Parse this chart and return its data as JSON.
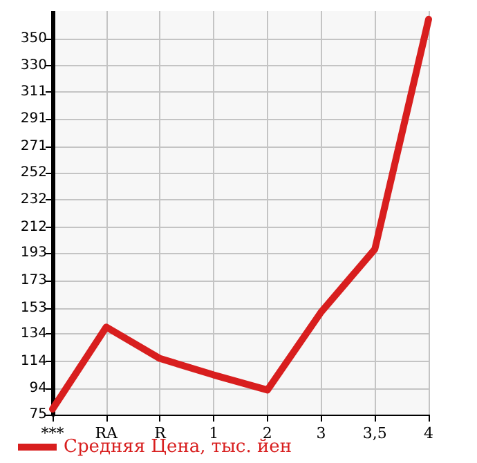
{
  "chart_data": {
    "type": "line",
    "categories": [
      "***",
      "RA",
      "R",
      "1",
      "2",
      "3",
      "3,5",
      "4"
    ],
    "series": [
      {
        "name": "Средняя Цена, тыс. йен",
        "color": "#d81e1e",
        "values": [
          79,
          139,
          116,
          104,
          93,
          150,
          196,
          364
        ]
      }
    ],
    "ylim": [
      75,
      370
    ],
    "yticks": [
      75,
      94,
      114,
      134,
      153,
      173,
      193,
      212,
      232,
      252,
      271,
      291,
      311,
      330,
      350
    ],
    "grid": true,
    "legend": "bottom",
    "marker": "none",
    "line_style": "solid"
  }
}
